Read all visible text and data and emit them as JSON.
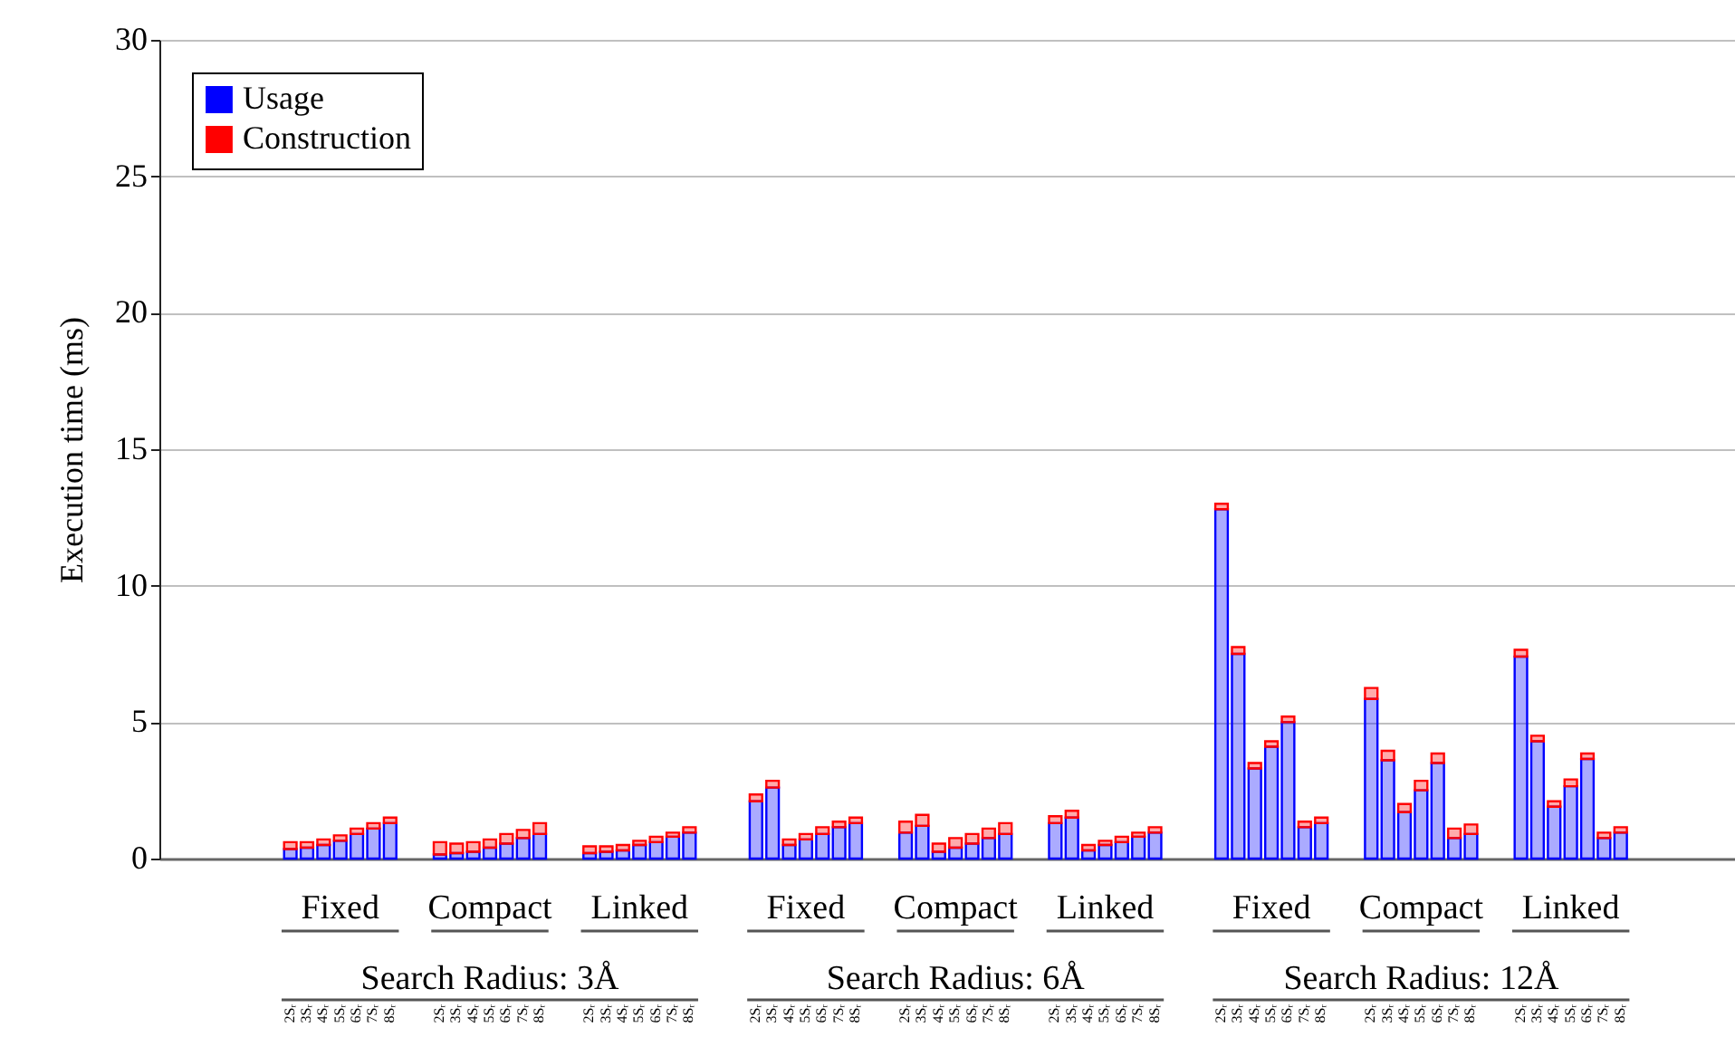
{
  "chart_data": {
    "type": "bar",
    "stacked": true,
    "ylabel": "Execution time (ms)",
    "ylim": [
      0,
      30
    ],
    "yticks": [
      0,
      5,
      10,
      15,
      20,
      25,
      30
    ],
    "grid": "y",
    "legend": "top left",
    "categories": [
      "2Sᵣ",
      "3Sᵣ",
      "4Sᵣ",
      "5Sᵣ",
      "6Sᵣ",
      "7Sᵣ",
      "8Sᵣ",
      "2Sᵣ",
      "3Sᵣ",
      "4Sᵣ",
      "5Sᵣ",
      "6Sᵣ",
      "7Sᵣ",
      "8Sᵣ",
      "2Sᵣ",
      "3Sᵣ",
      "4Sᵣ",
      "5Sᵣ",
      "6Sᵣ",
      "7Sᵣ",
      "8Sᵣ",
      "2Sᵣ",
      "3Sᵣ",
      "4Sᵣ",
      "5Sᵣ",
      "6Sᵣ",
      "7Sᵣ",
      "8Sᵣ",
      "2Sᵣ",
      "3Sᵣ",
      "4Sᵣ",
      "5Sᵣ",
      "6Sᵣ",
      "7Sᵣ",
      "8Sᵣ",
      "2Sᵣ",
      "3Sᵣ",
      "4Sᵣ",
      "5Sᵣ",
      "6Sᵣ",
      "7Sᵣ",
      "8Sᵣ",
      "2Sᵣ",
      "3Sᵣ",
      "4Sᵣ",
      "5Sᵣ",
      "6Sᵣ",
      "7Sᵣ",
      "8Sᵣ",
      "2Sᵣ",
      "3Sᵣ",
      "4Sᵣ",
      "5Sᵣ",
      "6Sᵣ",
      "7Sᵣ",
      "8Sᵣ",
      "2Sᵣ",
      "3Sᵣ",
      "4Sᵣ",
      "5Sᵣ",
      "6Sᵣ",
      "7Sᵣ",
      "8Sᵣ"
    ],
    "series": [
      {
        "name": "Usage",
        "color": "#0000ff",
        "values": [
          0.35,
          0.4,
          0.5,
          0.65,
          0.9,
          1.1,
          1.3,
          0.15,
          0.2,
          0.25,
          0.4,
          0.55,
          0.75,
          0.9,
          0.2,
          0.25,
          0.3,
          0.5,
          0.6,
          0.8,
          0.95,
          2.1,
          2.6,
          0.5,
          0.7,
          0.9,
          1.15,
          1.3,
          0.95,
          1.2,
          0.25,
          0.4,
          0.55,
          0.75,
          0.9,
          1.3,
          1.5,
          0.3,
          0.5,
          0.6,
          0.8,
          0.95,
          12.8,
          7.5,
          3.3,
          4.1,
          5.0,
          1.15,
          1.3,
          5.85,
          3.6,
          1.7,
          2.5,
          3.5,
          0.75,
          0.9,
          7.4,
          4.3,
          1.9,
          2.65,
          3.65,
          0.75,
          0.95
        ]
      },
      {
        "name": "Construction",
        "color": "#ff0000",
        "values": [
          0.25,
          0.2,
          0.2,
          0.2,
          0.2,
          0.2,
          0.2,
          0.45,
          0.35,
          0.35,
          0.3,
          0.35,
          0.3,
          0.4,
          0.25,
          0.2,
          0.2,
          0.15,
          0.2,
          0.15,
          0.2,
          0.25,
          0.25,
          0.2,
          0.2,
          0.25,
          0.2,
          0.2,
          0.4,
          0.4,
          0.3,
          0.35,
          0.35,
          0.35,
          0.4,
          0.25,
          0.25,
          0.2,
          0.15,
          0.2,
          0.15,
          0.2,
          0.2,
          0.25,
          0.2,
          0.2,
          0.2,
          0.2,
          0.2,
          0.4,
          0.35,
          0.3,
          0.35,
          0.35,
          0.35,
          0.35,
          0.25,
          0.2,
          0.2,
          0.25,
          0.2,
          0.2,
          0.2
        ]
      }
    ],
    "annotations": [
      "Fixed",
      "Compact",
      "Linked",
      "Fixed",
      "Compact",
      "Linked",
      "Fixed",
      "Compact",
      "Linked",
      "Search Radius: 3Å",
      "Search Radius: 6Å",
      "Search Radius: 12Å"
    ]
  }
}
